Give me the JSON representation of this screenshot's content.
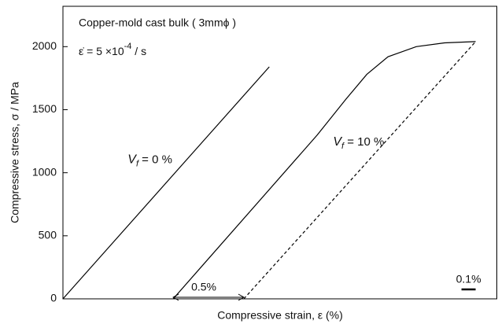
{
  "chart_data": {
    "type": "line",
    "title": "Copper-mold cast bulk ( 3mmϕ )",
    "rate_label": "ε̇ = 5 ×10",
    "rate_exponent": "-4",
    "rate_unit": " / s",
    "x_label": "Compressive strain,  ε   (%)",
    "y_label": "Compressive stress, σ / MPa",
    "xlim": [
      0,
      3.07
    ],
    "ylim": [
      0,
      2320
    ],
    "yticks": [
      0,
      500,
      1000,
      1500,
      2000
    ],
    "series": [
      {
        "color": "#000000",
        "style": "solid",
        "x": [
          0,
          1.46
        ],
        "values": [
          0,
          1840
        ],
        "label_main": "V",
        "label_sub": "f",
        "label_rest": " = 0 %"
      },
      {
        "color": "#000000",
        "style": "solid",
        "x": [
          0.78,
          1.8,
          2.0,
          2.15,
          2.3,
          2.5,
          2.7,
          2.92
        ],
        "values": [
          0,
          1300,
          1580,
          1780,
          1920,
          2000,
          2030,
          2040
        ],
        "label_main": "V",
        "label_sub": "f",
        "label_rest": " = 10 %"
      },
      {
        "color": "#000000",
        "style": "dashed",
        "x": [
          1.28,
          2.92
        ],
        "values": [
          0,
          2040
        ]
      }
    ],
    "offset_arrow": {
      "from": 0.78,
      "to": 1.28,
      "label": "0.5%"
    },
    "scale_bar": {
      "from": 2.82,
      "to": 2.92,
      "label": "0.1%"
    }
  }
}
